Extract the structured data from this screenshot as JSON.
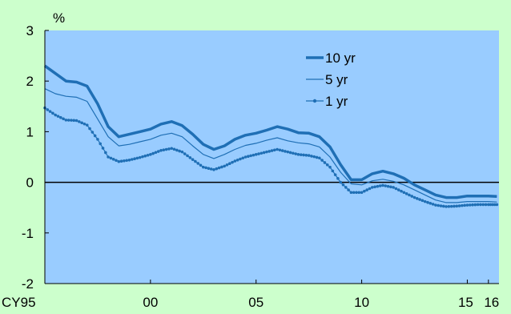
{
  "chart_data": {
    "type": "line",
    "ylabel": "%",
    "ylim": [
      -2,
      3
    ],
    "yticks": [
      "3",
      "2",
      "1",
      "0",
      "-1",
      "-2"
    ],
    "x_tick_labels": [
      "CY95",
      "00",
      "05",
      "10",
      "15",
      "16"
    ],
    "x_ticks": [
      1995,
      2000,
      2005,
      2010,
      2015,
      2016
    ],
    "xlim": [
      1995,
      2016.5
    ],
    "grid": false,
    "legend_position": "top-right",
    "colors": {
      "background": "#ccffcc",
      "plot_area": "#99ccff",
      "series": "#1f6fb5",
      "zero_line": "#000000"
    },
    "x": [
      1995,
      1995.5,
      1996,
      1996.5,
      1997,
      1997.5,
      1998,
      1998.5,
      1999,
      1999.5,
      2000,
      2000.5,
      2001,
      2001.5,
      2002,
      2002.5,
      2003,
      2003.5,
      2004,
      2004.5,
      2005,
      2005.5,
      2006,
      2006.5,
      2007,
      2007.5,
      2008,
      2008.5,
      2009,
      2009.5,
      2010,
      2010.5,
      2011,
      2011.5,
      2012,
      2012.5,
      2013,
      2013.5,
      2014,
      2014.5,
      2015,
      2015.5,
      2016,
      2016.4
    ],
    "series": [
      {
        "name": "10 yr",
        "style": "thick",
        "values": [
          2.3,
          2.15,
          2.0,
          1.98,
          1.9,
          1.55,
          1.1,
          0.9,
          0.95,
          1.0,
          1.05,
          1.15,
          1.2,
          1.12,
          0.95,
          0.75,
          0.65,
          0.72,
          0.85,
          0.93,
          0.97,
          1.03,
          1.1,
          1.05,
          0.98,
          0.97,
          0.9,
          0.7,
          0.35,
          0.05,
          0.05,
          0.17,
          0.22,
          0.17,
          0.08,
          -0.05,
          -0.15,
          -0.25,
          -0.3,
          -0.3,
          -0.27,
          -0.27,
          -0.27,
          -0.28
        ]
      },
      {
        "name": "5 yr",
        "style": "thin",
        "values": [
          1.85,
          1.75,
          1.7,
          1.68,
          1.6,
          1.25,
          0.9,
          0.72,
          0.75,
          0.8,
          0.85,
          0.93,
          0.97,
          0.9,
          0.72,
          0.55,
          0.47,
          0.55,
          0.65,
          0.73,
          0.77,
          0.83,
          0.88,
          0.82,
          0.78,
          0.76,
          0.7,
          0.5,
          0.2,
          -0.03,
          -0.05,
          0.03,
          0.06,
          0.02,
          -0.05,
          -0.15,
          -0.25,
          -0.35,
          -0.4,
          -0.4,
          -0.38,
          -0.38,
          -0.38,
          -0.39
        ]
      },
      {
        "name": "1 yr",
        "style": "marker",
        "values": [
          1.47,
          1.33,
          1.23,
          1.22,
          1.13,
          0.85,
          0.5,
          0.41,
          0.44,
          0.49,
          0.55,
          0.63,
          0.67,
          0.6,
          0.45,
          0.3,
          0.25,
          0.32,
          0.42,
          0.5,
          0.55,
          0.6,
          0.65,
          0.6,
          0.55,
          0.53,
          0.48,
          0.3,
          0.0,
          -0.2,
          -0.2,
          -0.1,
          -0.06,
          -0.1,
          -0.2,
          -0.3,
          -0.38,
          -0.45,
          -0.48,
          -0.47,
          -0.45,
          -0.44,
          -0.44,
          -0.44
        ]
      }
    ]
  }
}
